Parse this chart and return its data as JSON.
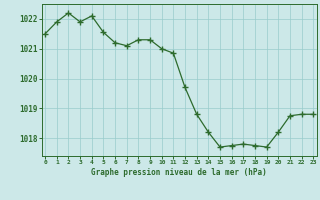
{
  "x": [
    0,
    1,
    2,
    3,
    4,
    5,
    6,
    7,
    8,
    9,
    10,
    11,
    12,
    13,
    14,
    15,
    16,
    17,
    18,
    19,
    20,
    21,
    22,
    23
  ],
  "y": [
    1021.5,
    1021.9,
    1022.2,
    1021.9,
    1022.1,
    1021.55,
    1021.2,
    1021.1,
    1021.3,
    1021.3,
    1021.0,
    1020.85,
    1019.7,
    1018.8,
    1018.2,
    1017.7,
    1017.75,
    1017.8,
    1017.75,
    1017.7,
    1018.2,
    1018.75,
    1018.8,
    1018.8
  ],
  "line_color": "#2d6b2d",
  "marker_color": "#2d6b2d",
  "bg_color": "#cce8e8",
  "grid_color": "#99cccc",
  "axis_color": "#2d6b2d",
  "tick_label_color": "#2d6b2d",
  "xlabel": "Graphe pression niveau de la mer (hPa)",
  "xlabel_color": "#2d6b2d",
  "yticks": [
    1018,
    1019,
    1020,
    1021,
    1022
  ],
  "xticks": [
    0,
    1,
    2,
    3,
    4,
    5,
    6,
    7,
    8,
    9,
    10,
    11,
    12,
    13,
    14,
    15,
    16,
    17,
    18,
    19,
    20,
    21,
    22,
    23
  ],
  "ylim": [
    1017.4,
    1022.5
  ],
  "xlim": [
    -0.3,
    23.3
  ]
}
